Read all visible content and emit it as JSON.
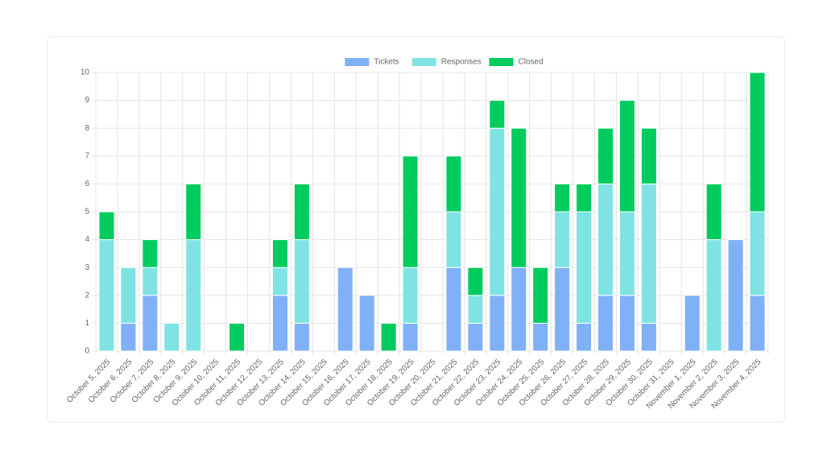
{
  "chart_data": {
    "type": "stacked-bar",
    "categories": [
      "October 5, 2025",
      "October 6, 2025",
      "October 7, 2025",
      "October 8, 2025",
      "October 9, 2025",
      "October 10, 2025",
      "October 11, 2025",
      "October 12, 2025",
      "October 13, 2025",
      "October 14, 2025",
      "October 15, 2025",
      "October 16, 2025",
      "October 17, 2025",
      "October 18, 2025",
      "October 19, 2025",
      "October 20, 2025",
      "October 21, 2025",
      "October 22, 2025",
      "October 23, 2025",
      "October 24, 2025",
      "October 25, 2025",
      "October 26, 2025",
      "October 27, 2025",
      "October 28, 2025",
      "October 29, 2025",
      "October 30, 2025",
      "October 31, 2025",
      "November 1, 2025",
      "November 2, 2025",
      "November 3, 2025",
      "November 4, 2025"
    ],
    "series": [
      {
        "name": "Tickets",
        "color": "#7fb0f8",
        "values": [
          0,
          1,
          2,
          0,
          0,
          0,
          0,
          0,
          2,
          1,
          0,
          3,
          2,
          0,
          1,
          0,
          3,
          1,
          2,
          3,
          1,
          3,
          1,
          2,
          2,
          1,
          0,
          2,
          0,
          4,
          2
        ]
      },
      {
        "name": "Responses",
        "color": "#80e3e3",
        "values": [
          4,
          2,
          1,
          1,
          4,
          0,
          0,
          0,
          1,
          3,
          0,
          0,
          0,
          0,
          2,
          0,
          2,
          1,
          6,
          0,
          0,
          2,
          4,
          4,
          3,
          5,
          0,
          0,
          4,
          0,
          3
        ]
      },
      {
        "name": "Closed",
        "color": "#00cc5e",
        "values": [
          1,
          0,
          1,
          0,
          2,
          0,
          1,
          0,
          1,
          2,
          0,
          0,
          0,
          1,
          4,
          0,
          2,
          1,
          1,
          5,
          2,
          1,
          1,
          2,
          4,
          2,
          0,
          0,
          2,
          0,
          5
        ]
      }
    ],
    "ylim": [
      0,
      10
    ],
    "yticks": [
      0,
      1,
      2,
      3,
      4,
      5,
      6,
      7,
      8,
      9,
      10
    ],
    "grid": true,
    "legend": "top"
  }
}
